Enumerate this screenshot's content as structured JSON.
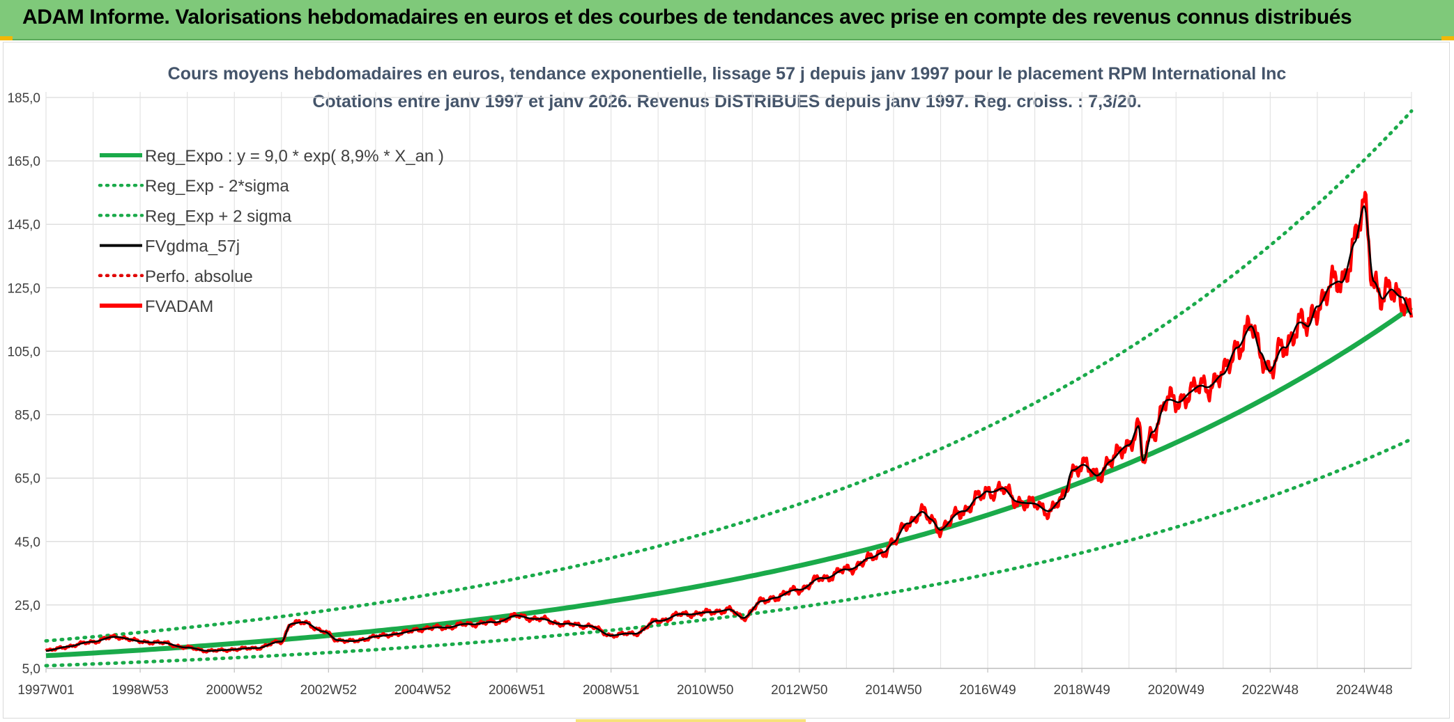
{
  "header": {
    "title": "ADAM Informe. Valorisations hebdomadaires en euros et des courbes de tendances avec prise en compte des revenus connus distribués"
  },
  "chart_data": {
    "type": "line",
    "title": "Cours moyens hebdomadaires en euros, tendance exponentielle, lissage 57 j depuis janv 1997 pour le placement RPM International Inc",
    "subtitle": "Cotations entre janv 1997 et janv 2026. Revenus DISTRIBUES depuis janv 1997. Reg. croiss. : 7,3/20.",
    "ylim": [
      5,
      185
    ],
    "xlim": [
      1997.0,
      2026.0
    ],
    "y_ticks": [
      "5,0",
      "25,0",
      "45,0",
      "65,0",
      "85,0",
      "105,0",
      "125,0",
      "145,0",
      "165,0",
      "185,0"
    ],
    "x_ticks": [
      {
        "label": "1997W01",
        "x": 1997.0
      },
      {
        "label": "1998W53",
        "x": 1999.0
      },
      {
        "label": "2000W52",
        "x": 2001.0
      },
      {
        "label": "2002W52",
        "x": 2003.0
      },
      {
        "label": "2004W52",
        "x": 2005.0
      },
      {
        "label": "2006W51",
        "x": 2007.0
      },
      {
        "label": "2008W51",
        "x": 2009.0
      },
      {
        "label": "2010W50",
        "x": 2011.0
      },
      {
        "label": "2012W50",
        "x": 2013.0
      },
      {
        "label": "2014W50",
        "x": 2015.0
      },
      {
        "label": "2016W49",
        "x": 2017.0
      },
      {
        "label": "2018W49",
        "x": 2019.0
      },
      {
        "label": "2020W49",
        "x": 2021.0
      },
      {
        "label": "2022W48",
        "x": 2023.0
      },
      {
        "label": "2024W48",
        "x": 2025.0
      }
    ],
    "grid": true,
    "legend_position": "top-left",
    "regression": {
      "a": 9.0,
      "rate": 0.089
    },
    "series": [
      {
        "name": "Reg_Expo : y = 9,0 * exp( 8,9% *  X_an )",
        "style": "solid-thick",
        "color": "#1aaa4a"
      },
      {
        "name": "Reg_Exp - 2*sigma",
        "style": "dotted",
        "color": "#1aaa4a",
        "factor": 0.65
      },
      {
        "name": "Reg_Exp + 2 sigma",
        "style": "dotted",
        "color": "#1aaa4a",
        "factor": 1.52
      },
      {
        "name": "FVgdma_57j",
        "style": "solid",
        "color": "#000000"
      },
      {
        "name": "Perfo. absolue",
        "style": "dotted",
        "color": "#e00000"
      },
      {
        "name": "FVADAM",
        "style": "solid-thick",
        "color": "#ff0000"
      }
    ],
    "observed": {
      "x": [
        1997.0,
        1997.5,
        1998.0,
        1998.5,
        1999.0,
        1999.5,
        2000.0,
        2000.5,
        2001.0,
        2001.5,
        2002.0,
        2002.2,
        2002.5,
        2002.9,
        2003.2,
        2003.5,
        2004.0,
        2004.5,
        2005.0,
        2005.5,
        2006.0,
        2006.5,
        2007.0,
        2007.5,
        2008.0,
        2008.5,
        2009.0,
        2009.5,
        2010.0,
        2010.5,
        2011.0,
        2011.5,
        2011.8,
        2012.2,
        2012.5,
        2013.0,
        2013.5,
        2014.0,
        2014.5,
        2014.8,
        2015.0,
        2015.3,
        2015.6,
        2015.8,
        2016.0,
        2016.5,
        2016.8,
        2017.0,
        2017.3,
        2017.6,
        2018.0,
        2018.3,
        2018.6,
        2018.8,
        2019.0,
        2019.3,
        2019.6,
        2020.0,
        2020.2,
        2020.3,
        2020.5,
        2020.8,
        2021.0,
        2021.3,
        2021.6,
        2022.0,
        2022.3,
        2022.6,
        2022.8,
        2023.0,
        2023.3,
        2023.6,
        2023.8,
        2024.0,
        2024.3,
        2024.5,
        2024.8,
        2025.0,
        2025.2,
        2025.4,
        2025.6,
        2025.8,
        2026.0
      ],
      "y": [
        10.5,
        12.0,
        13.5,
        15.0,
        13.5,
        13.0,
        11.5,
        10.5,
        11.0,
        11.5,
        13.5,
        19.0,
        19.5,
        16.5,
        14.0,
        13.5,
        15.0,
        16.0,
        17.5,
        18.0,
        19.0,
        19.5,
        21.5,
        20.5,
        19.0,
        18.5,
        15.5,
        16.0,
        20.0,
        22.0,
        22.5,
        23.5,
        21.0,
        26.0,
        27.5,
        30.0,
        33.5,
        36.0,
        39.5,
        42.0,
        44.5,
        51.0,
        54.0,
        52.0,
        49.0,
        55.0,
        58.5,
        61.0,
        61.5,
        58.0,
        56.5,
        55.0,
        58.0,
        68.0,
        69.0,
        66.0,
        70.0,
        76.0,
        81.0,
        70.0,
        80.0,
        89.0,
        89.0,
        92.0,
        94.0,
        97.0,
        107.0,
        112.0,
        105.0,
        99.0,
        106.0,
        114.0,
        112.0,
        120.0,
        125.0,
        127.0,
        139.0,
        150.0,
        128.0,
        121.0,
        124.0,
        123.0,
        116.0
      ]
    }
  }
}
